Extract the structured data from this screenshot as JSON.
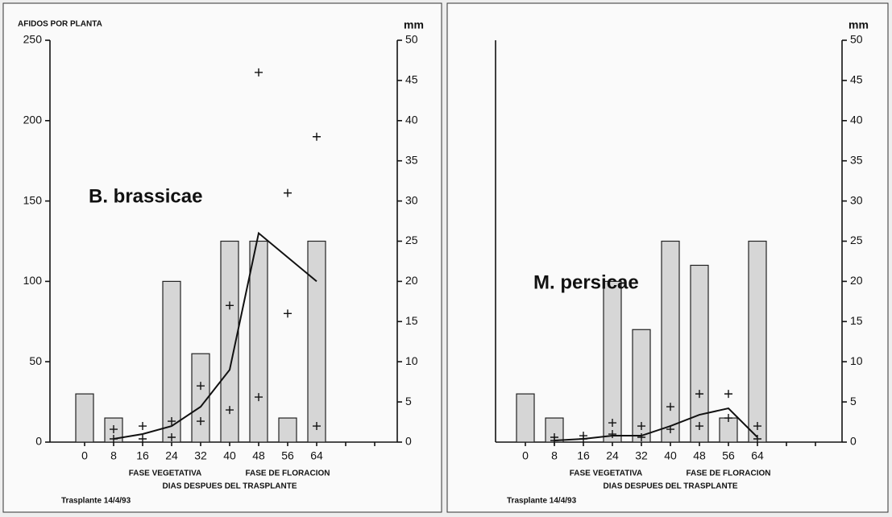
{
  "chart_data": [
    {
      "type": "bar",
      "title": "B. brassicae",
      "y_label": "AFIDOS POR PLANTA",
      "y2_label": "mm",
      "categories": [
        "0",
        "8",
        "16",
        "24",
        "32",
        "40",
        "48",
        "56",
        "64",
        null,
        null
      ],
      "ylim": [
        0,
        250
      ],
      "yticks": [
        0,
        50,
        100,
        150,
        200,
        250
      ],
      "y2lim": [
        0,
        50
      ],
      "y2ticks": [
        0,
        5,
        10,
        15,
        20,
        25,
        30,
        35,
        40,
        45,
        50
      ],
      "series": [
        {
          "type": "bar",
          "axis": "y2",
          "color": "#d6d6d6",
          "values": [
            6,
            3,
            null,
            20,
            11,
            25,
            25,
            3,
            25,
            null,
            null
          ]
        },
        {
          "type": "line",
          "color": "#111111",
          "values": [
            null,
            2,
            5,
            10,
            22,
            45,
            130,
            115,
            100,
            null,
            null
          ]
        },
        {
          "type": "marker",
          "color": "#111111",
          "values": [
            null,
            8,
            10,
            13,
            35,
            85,
            230,
            155,
            190,
            null,
            null
          ]
        },
        {
          "type": "marker",
          "color": "#111111",
          "values": [
            null,
            2,
            2,
            3,
            13,
            20,
            28,
            80,
            10,
            null,
            null
          ]
        }
      ],
      "phase_labels": [
        "FASE VEGETATIVA",
        "FASE DE FLORACION"
      ],
      "x_label": "DIAS DESPUES DEL TRASPLANTE",
      "note": "Trasplante 14/4/93"
    },
    {
      "type": "bar",
      "title": "M. persicae",
      "y2_label": "mm",
      "categories": [
        "0",
        "8",
        "16",
        "24",
        "32",
        "40",
        "48",
        "56",
        "64",
        null,
        null
      ],
      "ylim": [
        0,
        250
      ],
      "y2lim": [
        0,
        50
      ],
      "y2ticks": [
        0,
        5,
        10,
        15,
        20,
        25,
        30,
        35,
        40,
        45,
        50
      ],
      "series": [
        {
          "type": "bar",
          "axis": "y2",
          "color": "#d6d6d6",
          "values": [
            6,
            3,
            null,
            20,
            14,
            25,
            22,
            3,
            25,
            null,
            null
          ]
        },
        {
          "type": "line",
          "color": "#111111",
          "values": [
            null,
            1,
            2,
            4,
            4,
            10,
            17,
            21,
            3,
            null,
            null
          ]
        },
        {
          "type": "marker",
          "color": "#111111",
          "values": [
            null,
            3,
            4,
            12,
            10,
            22,
            30,
            30,
            10,
            null,
            null
          ]
        },
        {
          "type": "marker",
          "color": "#111111",
          "values": [
            null,
            1,
            2,
            5,
            3,
            8,
            10,
            15,
            2,
            null,
            null
          ]
        }
      ],
      "phase_labels": [
        "FASE VEGETATIVA",
        "FASE DE FLORACION"
      ],
      "x_label": "DIAS DESPUES DEL TRASPLANTE",
      "note": "Trasplante 14/4/93"
    }
  ]
}
